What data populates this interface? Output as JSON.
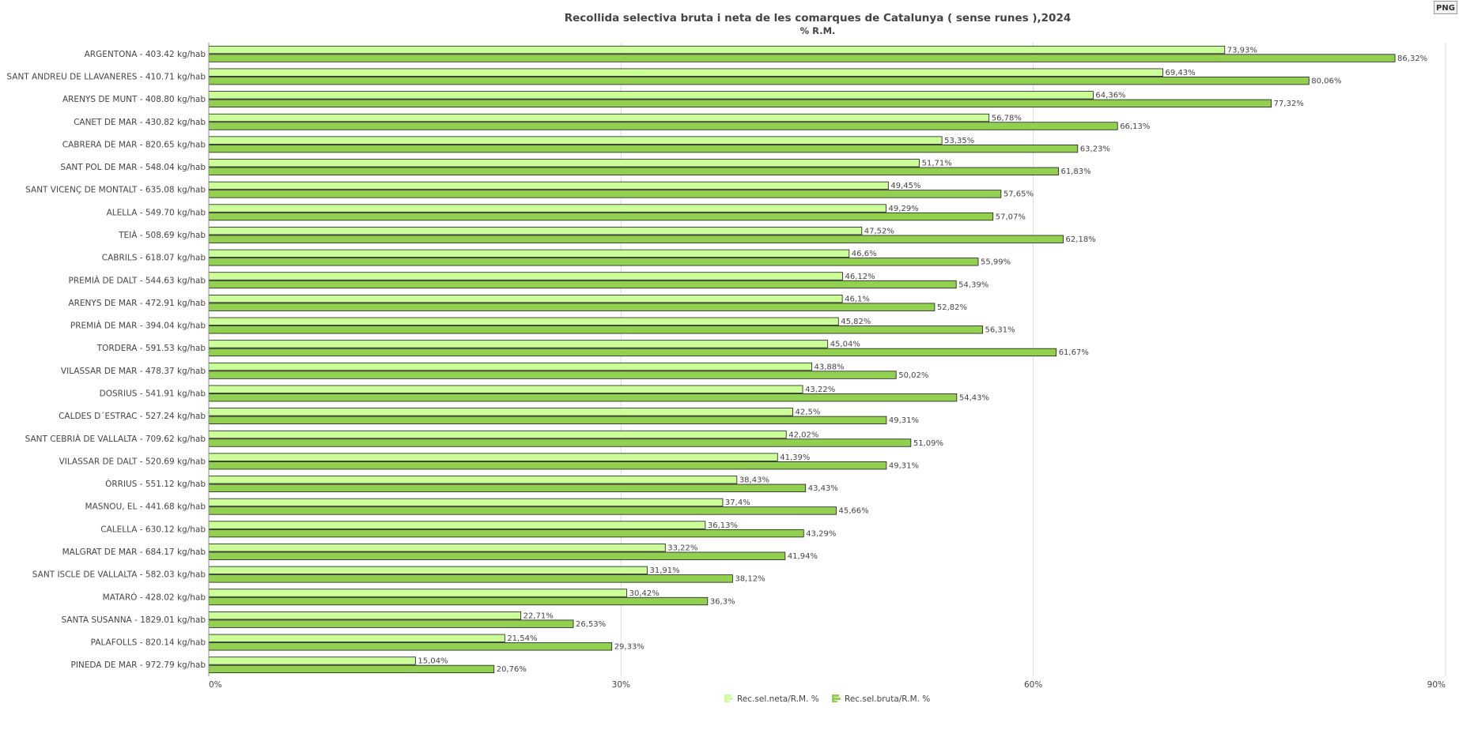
{
  "toolbar": {
    "export_label": "PNG"
  },
  "chart_data": {
    "type": "bar",
    "orientation": "horizontal",
    "title": "Recollida selectiva bruta i neta de les comarques de Catalunya ( sense runes ),2024",
    "subtitle": "% R.M.",
    "xlim": [
      0,
      90
    ],
    "ticks": [
      0,
      30,
      60,
      90
    ],
    "tick_labels": [
      "0%",
      "30%",
      "60%",
      "90%"
    ],
    "grid": true,
    "legend_position": "bottom-center",
    "categories": [
      "ARGENTONA - 403.42 kg/hab",
      "SANT ANDREU DE LLAVANERES - 410.71 kg/hab",
      "ARENYS DE MUNT - 408.80 kg/hab",
      "CANET DE MAR - 430.82 kg/hab",
      "CABRERA DE MAR - 820.65 kg/hab",
      "SANT POL DE MAR - 548.04 kg/hab",
      "SANT VICENÇ DE MONTALT - 635.08 kg/hab",
      "ALELLA - 549.70 kg/hab",
      "TEIÀ - 508.69 kg/hab",
      "CABRILS - 618.07 kg/hab",
      "PREMIÀ DE DALT - 544.63 kg/hab",
      "ARENYS DE MAR - 472.91 kg/hab",
      "PREMIÀ DE MAR - 394.04 kg/hab",
      "TORDERA - 591.53 kg/hab",
      "VILASSAR DE MAR - 478.37 kg/hab",
      "DOSRIUS - 541.91 kg/hab",
      "CALDES D´ESTRAC - 527.24 kg/hab",
      "SANT CEBRIÀ DE VALLALTA - 709.62 kg/hab",
      "VILASSAR DE DALT - 520.69 kg/hab",
      "ÒRRIUS - 551.12 kg/hab",
      "MASNOU, EL - 441.68 kg/hab",
      "CALELLA - 630.12 kg/hab",
      "MALGRAT DE MAR - 684.17 kg/hab",
      "SANT ISCLE DE VALLALTA - 582.03 kg/hab",
      "MATARÓ - 428.02 kg/hab",
      "SANTA SUSANNA - 1829.01 kg/hab",
      "PALAFOLLS - 820.14 kg/hab",
      "PINEDA DE MAR - 972.79 kg/hab"
    ],
    "series": [
      {
        "name": "Rec.sel.neta/R.M. %",
        "color": "#ccff99",
        "values": [
          73.93,
          69.43,
          64.36,
          56.78,
          53.35,
          51.71,
          49.45,
          49.29,
          47.52,
          46.6,
          46.12,
          46.1,
          45.82,
          45.04,
          43.88,
          43.22,
          42.5,
          42.02,
          41.39,
          38.43,
          37.4,
          36.13,
          33.22,
          31.91,
          30.42,
          22.71,
          21.54,
          15.04
        ],
        "labels": [
          "73,93%",
          "69,43%",
          "64,36%",
          "56,78%",
          "53,35%",
          "51,71%",
          "49,45%",
          "49,29%",
          "47,52%",
          "46,6%",
          "46,12%",
          "46,1%",
          "45,82%",
          "45,04%",
          "43,88%",
          "43,22%",
          "42,5%",
          "42,02%",
          "41,39%",
          "38,43%",
          "37,4%",
          "36,13%",
          "33,22%",
          "31,91%",
          "30,42%",
          "22,71%",
          "21,54%",
          "15,04%"
        ]
      },
      {
        "name": "Rec.sel.bruta/R.M. %",
        "color": "#92d050",
        "values": [
          86.32,
          80.06,
          77.32,
          66.13,
          63.23,
          61.83,
          57.65,
          57.07,
          62.18,
          55.99,
          54.39,
          52.82,
          56.31,
          61.67,
          50.02,
          54.43,
          49.31,
          51.09,
          49.31,
          43.43,
          45.66,
          43.29,
          41.94,
          38.12,
          36.3,
          26.53,
          29.33,
          20.76
        ],
        "labels": [
          "86,32%",
          "80,06%",
          "77,32%",
          "66,13%",
          "63,23%",
          "61,83%",
          "57,65%",
          "57,07%",
          "62,18%",
          "55,99%",
          "54,39%",
          "52,82%",
          "56,31%",
          "61,67%",
          "50,02%",
          "54,43%",
          "49,31%",
          "51,09%",
          "49,31%",
          "43,43%",
          "45,66%",
          "43,29%",
          "41,94%",
          "38,12%",
          "36,3%",
          "26,53%",
          "29,33%",
          "20,76%"
        ]
      }
    ]
  }
}
